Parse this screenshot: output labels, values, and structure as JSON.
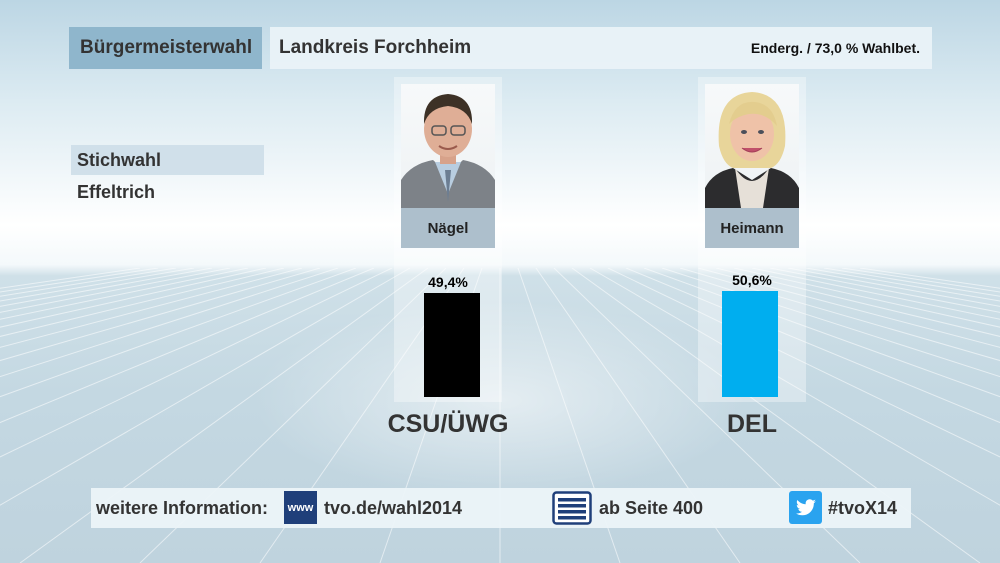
{
  "header": {
    "election_type": "Bürgermeisterwahl",
    "region": "Landkreis Forchheim",
    "status": "Enderg. / 73,0 % Wahlbet."
  },
  "sidebar": {
    "items": [
      {
        "label": "Stichwahl",
        "active": true
      },
      {
        "label": "Effeltrich",
        "active": false
      }
    ]
  },
  "candidates": [
    {
      "name": "Nägel",
      "party": "CSU/ÜWG",
      "percent_label": "49,4%",
      "value": 49.4,
      "color": "#000000"
    },
    {
      "name": "Heimann",
      "party": "DEL",
      "percent_label": "50,6%",
      "value": 50.6,
      "color": "#00aeef"
    }
  ],
  "footer": {
    "info_label": "weitere Information:",
    "www_icon_text": "www",
    "url": "tvo.de/wahl2014",
    "teletext_page": "ab Seite 400",
    "hashtag": "#tvoX14"
  },
  "colors": {
    "header_left_bg": "#8fb6cc",
    "name_label_bg": "#adbfcc",
    "twitter": "#2aa3ef",
    "www": "#1f3f7a"
  }
}
